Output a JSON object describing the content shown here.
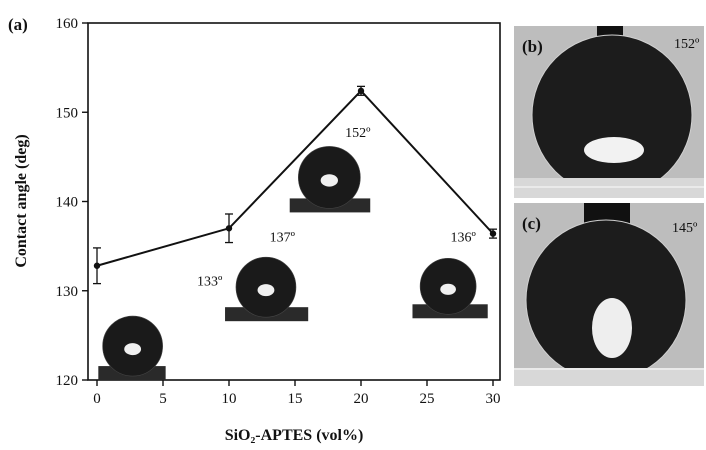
{
  "panels": {
    "a": "(a)",
    "b": "(b)",
    "c": "(c)"
  },
  "photo_labels": {
    "b": "152º",
    "c": "145º"
  },
  "chart_data": {
    "type": "line",
    "xlabel": "SiO₂-APTES (vol%)",
    "ylabel": "Contact angle (deg)",
    "xlim": [
      0,
      30
    ],
    "ylim": [
      120,
      160
    ],
    "xticks": [
      0,
      5,
      10,
      15,
      20,
      25,
      30
    ],
    "yticks": [
      120,
      130,
      140,
      150,
      160
    ],
    "x": [
      0,
      10,
      20,
      30
    ],
    "y": [
      132.8,
      137.0,
      152.4,
      136.4
    ],
    "yerr": [
      2.0,
      1.6,
      0.5,
      0.5
    ],
    "annotations": [
      "133º",
      "137º",
      "152º",
      "136º"
    ],
    "grid": false,
    "colors": {
      "line": "#111111",
      "droplet": "#1a1a1a",
      "substrate": "#222222"
    }
  }
}
